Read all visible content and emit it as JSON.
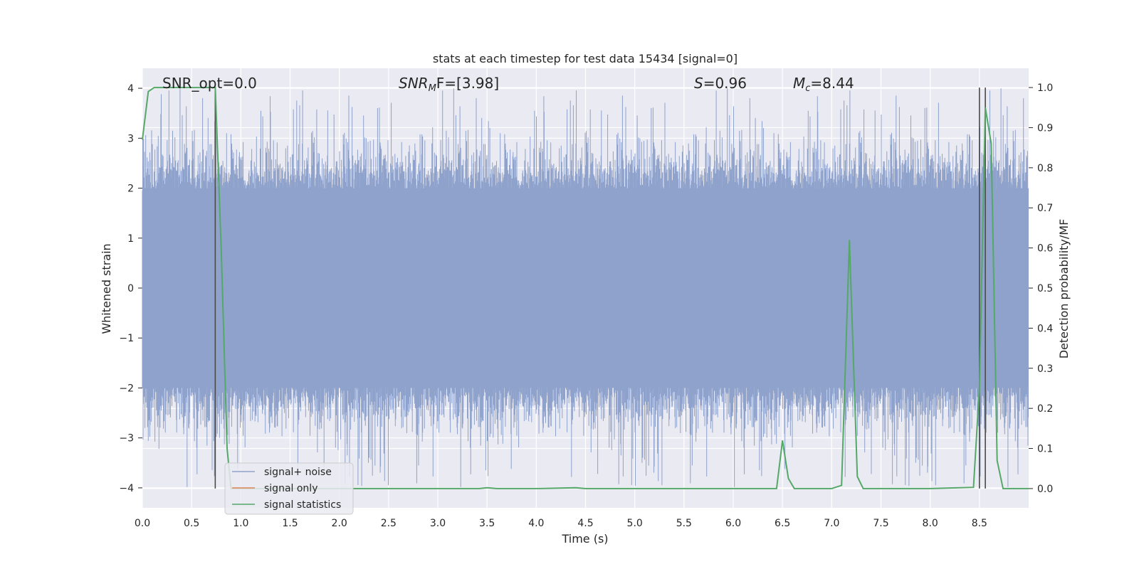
{
  "chart_data": {
    "type": "line",
    "title": "stats at each timestep for test data 15434 [signal=0]",
    "xlabel": "Time (s)",
    "ylabel": "Whitened strain",
    "y2label": "Detection probability/MF",
    "xlim": [
      0.0,
      9.0
    ],
    "ylim": [
      -4.4,
      4.4
    ],
    "y2lim": [
      -0.048,
      1.048
    ],
    "x_ticks": [
      "0.0",
      "0.5",
      "1.0",
      "1.5",
      "2.0",
      "2.5",
      "3.0",
      "3.5",
      "4.0",
      "4.5",
      "5.0",
      "5.5",
      "6.0",
      "6.5",
      "7.0",
      "7.5",
      "8.0",
      "8.5"
    ],
    "y_ticks": [
      "4",
      "3",
      "2",
      "1",
      "0",
      "−1",
      "−2",
      "−3",
      "−4"
    ],
    "y2_ticks": [
      "1.0",
      "0.9",
      "0.8",
      "0.7",
      "0.6",
      "0.5",
      "0.4",
      "0.3",
      "0.2",
      "0.1",
      "0.0"
    ],
    "grid": true,
    "legend_position": "bottom-left",
    "annotations": {
      "snr_opt": "SNR_opt=0.0",
      "snr_mf_base": "SNR",
      "snr_mf_sub": "M",
      "snr_mf_rest": "F=[3.98]",
      "s_var": "S",
      "s_rest": "=0.96",
      "mc_base": "M",
      "mc_sub": "c",
      "mc_rest": "=8.44"
    },
    "colors": {
      "background": "#eaeaf2",
      "grid": "#ffffff",
      "noise": "#8fa2cc",
      "signal_only": "#dd8452",
      "statistics": "#55a868",
      "vline": "#4a4a4a"
    },
    "series": [
      {
        "name": "signal+ noise",
        "kind": "noise",
        "description_note": "dense whitened strain noise",
        "envelope_top": 2.0,
        "envelope_bottom": -2.0,
        "peak_max": 4.0,
        "trough_min": -4.0
      },
      {
        "name": "signal only",
        "kind": "line",
        "values": []
      },
      {
        "name": "signal statistics",
        "kind": "line",
        "x": [
          0.0,
          0.06,
          0.12,
          0.18,
          0.24,
          0.3,
          0.42,
          0.54,
          0.66,
          0.74,
          0.8,
          0.86,
          0.9,
          1.0,
          1.5,
          2.0,
          2.5,
          3.0,
          3.42,
          3.5,
          3.6,
          4.0,
          4.4,
          4.5,
          5.0,
          5.5,
          6.0,
          6.44,
          6.5,
          6.56,
          6.62,
          6.68,
          7.0,
          7.1,
          7.18,
          7.26,
          7.32,
          7.5,
          8.0,
          8.44,
          8.5,
          8.56,
          8.62,
          8.68,
          8.74,
          8.8,
          9.0
        ],
        "values": [
          0.87,
          0.99,
          1.0,
          1.0,
          1.0,
          1.0,
          1.0,
          1.0,
          1.0,
          1.0,
          0.6,
          0.1,
          0.0,
          0.0,
          0.0,
          0.0,
          0.0,
          0.0,
          0.0,
          0.002,
          0.0,
          0.0,
          0.002,
          0.0,
          0.0,
          0.0,
          0.0,
          0.0,
          0.12,
          0.025,
          0.0,
          0.0,
          0.0,
          0.008,
          0.62,
          0.03,
          0.0,
          0.0,
          0.0,
          0.003,
          0.25,
          0.95,
          0.86,
          0.07,
          0.0,
          0.0,
          0.0
        ]
      }
    ],
    "vlines": [
      0.74,
      8.5,
      8.56
    ]
  },
  "legend": {
    "noise_label": "signal+ noise",
    "signal_label": "signal only",
    "stats_label": "signal statistics"
  }
}
